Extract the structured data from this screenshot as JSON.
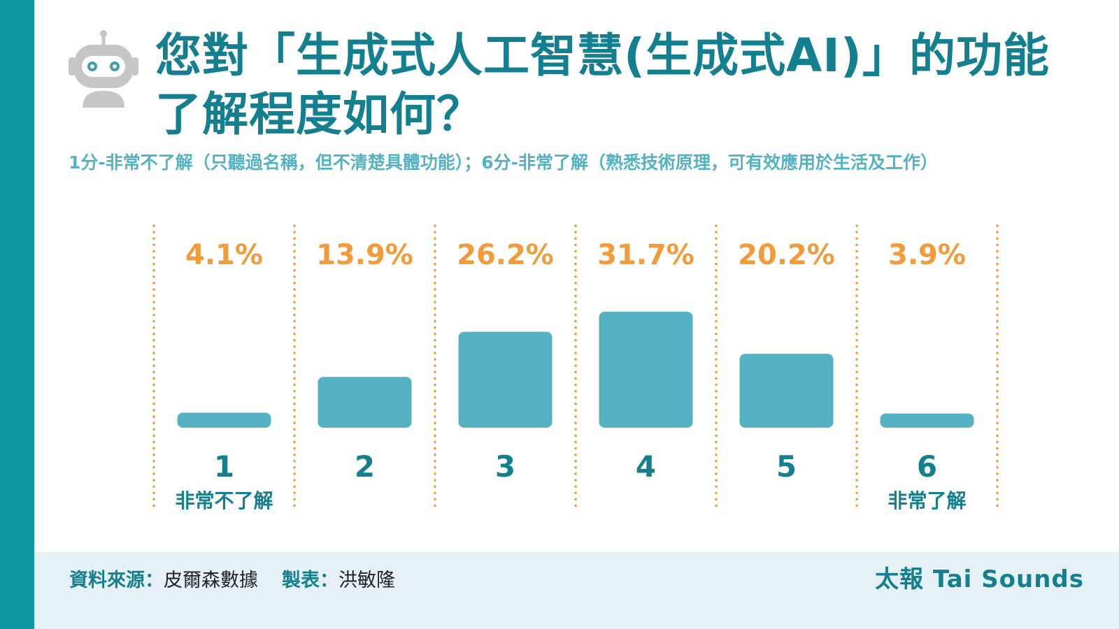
{
  "title_line1": "您對「生成式人工智慧(生成式AI)」的功能",
  "title_line2": "了解程度如何？",
  "subtitle": "1分-非常不了解（只聽過名稱，但不清楚具體功能）；6分-非常了解（熟悉技術原理，可有效應用於生活及工作）",
  "footer": {
    "source_label": "資料來源：",
    "source_value": "皮爾森數據",
    "maker_label": "製表：",
    "maker_value": "洪敏隆",
    "brand": "太報 Tai Sounds"
  },
  "colors": {
    "accent": "#137f8f",
    "sidebar": "#0f97a6",
    "bar": "#55b2c2",
    "value_label": "#f29b38",
    "divider": "#f29b38",
    "subtitle": "#55b2c2",
    "footer_bg": "#e6f1f6",
    "robot": "#c6c6c6"
  },
  "icons": {
    "robot": "robot-icon"
  },
  "chart_data": {
    "type": "bar",
    "categories": [
      "1",
      "2",
      "3",
      "4",
      "5",
      "6"
    ],
    "category_sublabels": [
      "非常不了解",
      "",
      "",
      "",
      "",
      "非常了解"
    ],
    "values": [
      4.1,
      13.9,
      26.2,
      31.7,
      20.2,
      3.9
    ],
    "value_labels": [
      "4.1%",
      "13.9%",
      "26.2%",
      "31.7%",
      "20.2%",
      "3.9%"
    ],
    "unit": "%",
    "title": "您對「生成式人工智慧(生成式AI)」的功能了解程度如何？",
    "xlabel": "",
    "ylabel": "",
    "ylim": [
      0,
      31.7
    ],
    "grid": false,
    "legend": "none"
  }
}
